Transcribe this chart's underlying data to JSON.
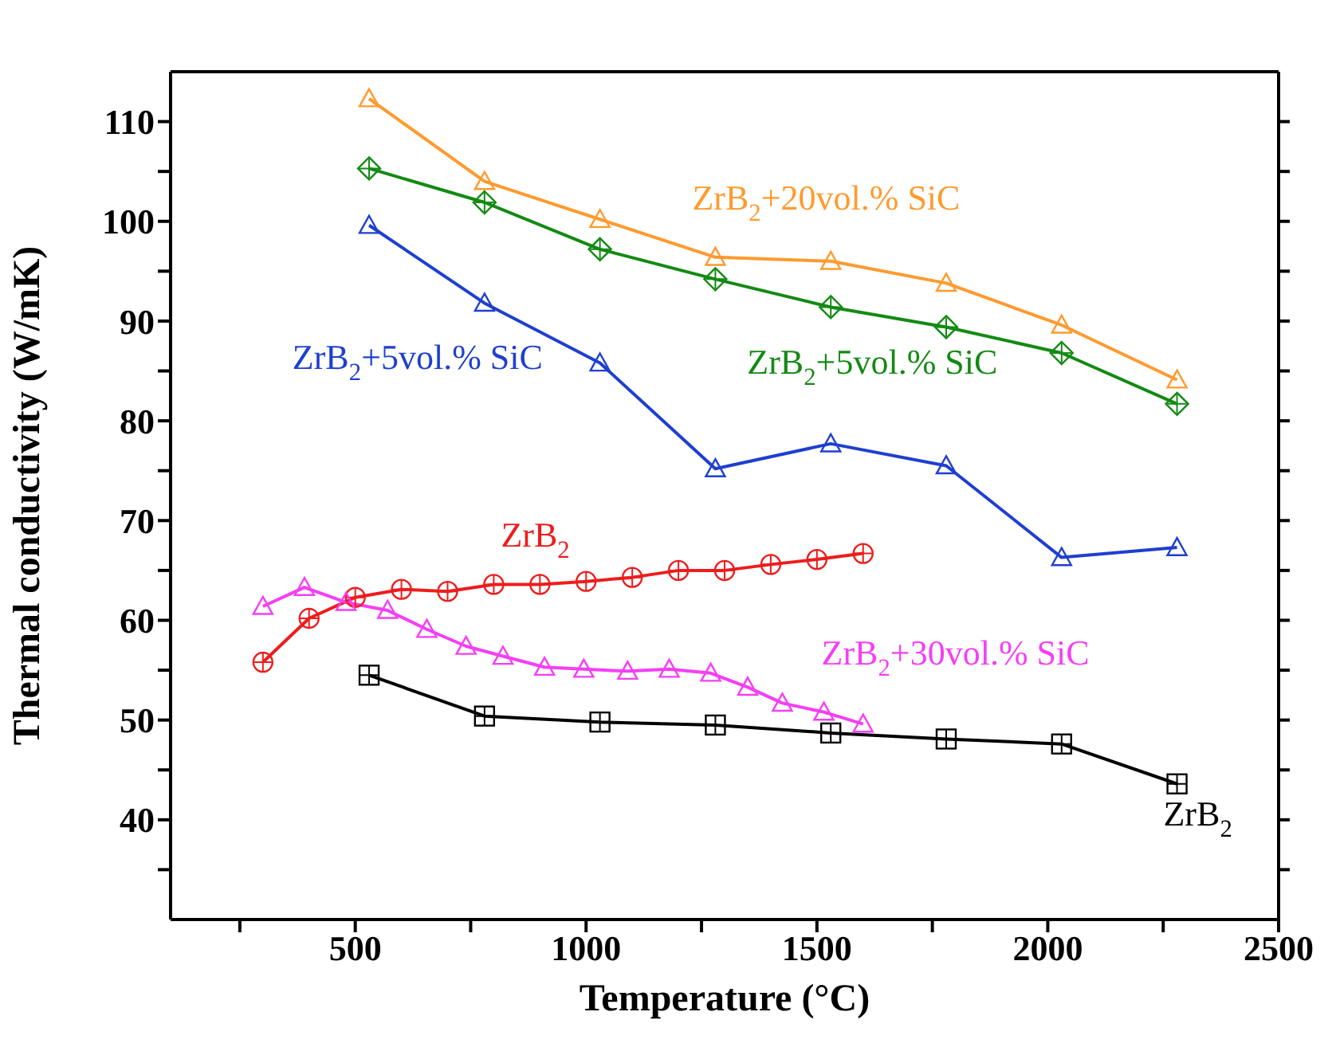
{
  "chart_data": {
    "type": "line",
    "xlabel": "Temperature (°C)",
    "ylabel": "Thermal conductivity (W/mK)",
    "xlim": [
      100,
      2500
    ],
    "xticks": [
      {
        "value": 250,
        "label": null
      },
      500,
      {
        "value": 750,
        "label": null
      },
      1000,
      {
        "value": 1250,
        "label": null
      },
      1500,
      {
        "value": 1750,
        "label": null
      },
      2000,
      {
        "value": 2250,
        "label": null
      },
      2500
    ],
    "ylim": [
      30,
      115
    ],
    "yticks": [
      {
        "value": 35,
        "label": null
      },
      40,
      {
        "value": 45,
        "label": null
      },
      50,
      {
        "value": 55,
        "label": null
      },
      60,
      {
        "value": 65,
        "label": null
      },
      70,
      {
        "value": 75,
        "label": null
      },
      80,
      {
        "value": 85,
        "label": null
      },
      90,
      {
        "value": 95,
        "label": null
      },
      100,
      {
        "value": 105,
        "label": null
      },
      110
    ],
    "grid": false,
    "legend": false,
    "series": [
      {
        "color": "#ff9a2e",
        "marker": "triangle",
        "x": [
          530,
          780,
          1030,
          1280,
          1530,
          1780,
          2030,
          2280
        ],
        "values": [
          112.3,
          104.0,
          100.2,
          96.4,
          96.0,
          93.8,
          89.6,
          84.1
        ]
      },
      {
        "color": "#138a13",
        "marker": "diamond",
        "x": [
          530,
          780,
          1030,
          1280,
          1530,
          1780,
          2030,
          2280
        ],
        "values": [
          105.3,
          101.9,
          97.2,
          94.2,
          91.4,
          89.4,
          86.8,
          81.7
        ]
      },
      {
        "color": "#1f3fd0",
        "marker": "triangle",
        "x": [
          530,
          780,
          1030,
          1280,
          1530,
          1780,
          2030,
          2280
        ],
        "values": [
          99.6,
          91.8,
          85.8,
          75.2,
          77.7,
          75.5,
          66.3,
          67.3
        ]
      },
      {
        "color": "#ee1c1c",
        "marker": "circle",
        "x": [
          300,
          400,
          500,
          600,
          700,
          800,
          900,
          1000,
          1100,
          1200,
          1300,
          1400,
          1500,
          1600
        ],
        "values": [
          55.8,
          60.2,
          62.3,
          63.1,
          62.9,
          63.6,
          63.6,
          63.9,
          64.3,
          65.0,
          65.0,
          65.6,
          66.1,
          66.7
        ]
      },
      {
        "color": "#f53ef5",
        "marker": "triangle",
        "x": [
          300,
          390,
          480,
          570,
          655,
          740,
          820,
          910,
          995,
          1090,
          1180,
          1270,
          1350,
          1425,
          1515,
          1600
        ],
        "values": [
          61.4,
          63.3,
          61.8,
          61.0,
          59.1,
          57.4,
          56.4,
          55.3,
          55.1,
          54.9,
          55.1,
          54.7,
          53.3,
          51.7,
          50.8,
          49.6
        ]
      },
      {
        "color": "#000000",
        "marker": "square",
        "x": [
          530,
          780,
          1030,
          1280,
          1530,
          1780,
          2030,
          2280
        ],
        "values": [
          54.5,
          50.4,
          49.8,
          49.5,
          48.7,
          48.1,
          47.6,
          43.6
        ]
      }
    ],
    "annotations": [
      "ZrB$_{2}$+20vol.% SiC",
      "ZrB$_{2}$+5vol.% SiC",
      "ZrB$_{2}$+5vol.% SiC",
      "ZrB$_{2}$",
      "ZrB$_{2}$+30vol.% SiC",
      "ZrB$_{2}$"
    ]
  }
}
